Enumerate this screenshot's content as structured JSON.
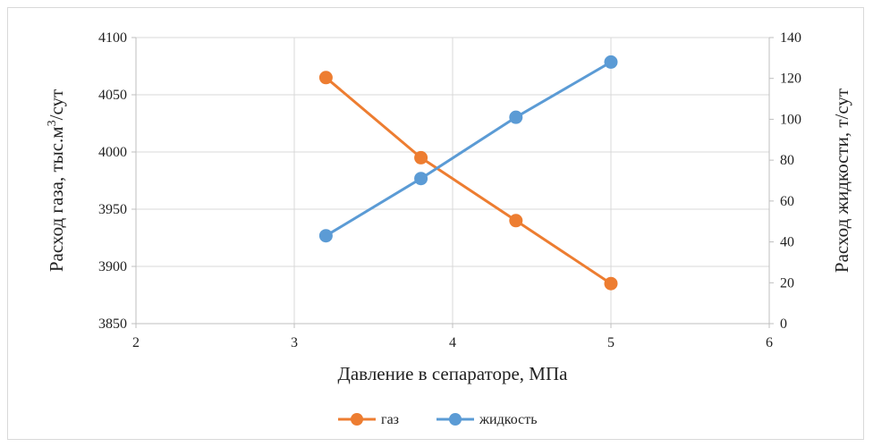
{
  "chart_data": {
    "type": "line",
    "xlabel": "Давление в сепараторе, МПа",
    "ylabel_left": "Расход газа, тыс.м",
    "ylabel_left_sup": "3",
    "ylabel_left_suffix": "/сут",
    "ylabel_right": "Расход жидкости, т/сут",
    "xlim": [
      2,
      6
    ],
    "x_ticks": [
      2,
      3,
      4,
      5,
      6
    ],
    "ylim_left": [
      3850,
      4100
    ],
    "y_left_ticks": [
      3850,
      3900,
      3950,
      4000,
      4050,
      4100
    ],
    "ylim_right": [
      0,
      140
    ],
    "y_right_ticks": [
      0,
      20,
      40,
      60,
      80,
      100,
      120,
      140
    ],
    "grid": true,
    "legend_position": "bottom",
    "series": [
      {
        "name": "газ",
        "axis": "left",
        "color": "#ED7D31",
        "x": [
          3.2,
          3.8,
          4.4,
          5.0
        ],
        "values": [
          4065,
          3995,
          3940,
          3885
        ]
      },
      {
        "name": "жидкость",
        "axis": "right",
        "color": "#5B9BD5",
        "x": [
          3.2,
          3.8,
          4.4,
          5.0
        ],
        "values": [
          43,
          71,
          101,
          128
        ]
      }
    ]
  }
}
